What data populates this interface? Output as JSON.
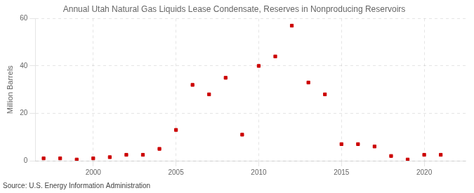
{
  "chart_data": {
    "type": "scatter",
    "title": "Annual Utah Natural Gas Liquids Lease Condensate, Reserves in Nonproducing Reservoirs",
    "ylabel": "Million Barrels",
    "annotation": "Source: U.S. Energy Information Administration",
    "x": [
      1997,
      1998,
      1999,
      2000,
      2001,
      2002,
      2003,
      2004,
      2005,
      2006,
      2007,
      2008,
      2009,
      2010,
      2011,
      2012,
      2013,
      2014,
      2015,
      2016,
      2017,
      2018,
      2019,
      2020,
      2021
    ],
    "values": [
      1.0,
      1.0,
      0.5,
      1.0,
      1.5,
      2.5,
      2.5,
      5.0,
      13.0,
      32.0,
      28.0,
      35.0,
      11.0,
      40.0,
      44.0,
      57.0,
      33.0,
      28.0,
      7.0,
      7.0,
      6.0,
      2.0,
      0.5,
      2.5,
      2.5
    ],
    "color": "#cc0000",
    "marker": "square",
    "xlim": [
      1996.5,
      2022.5
    ],
    "ylim": [
      0,
      60
    ],
    "xticks": [
      2000,
      2005,
      2010,
      2015,
      2020
    ],
    "yticks": [
      0,
      20,
      40,
      60
    ],
    "grid": true
  }
}
